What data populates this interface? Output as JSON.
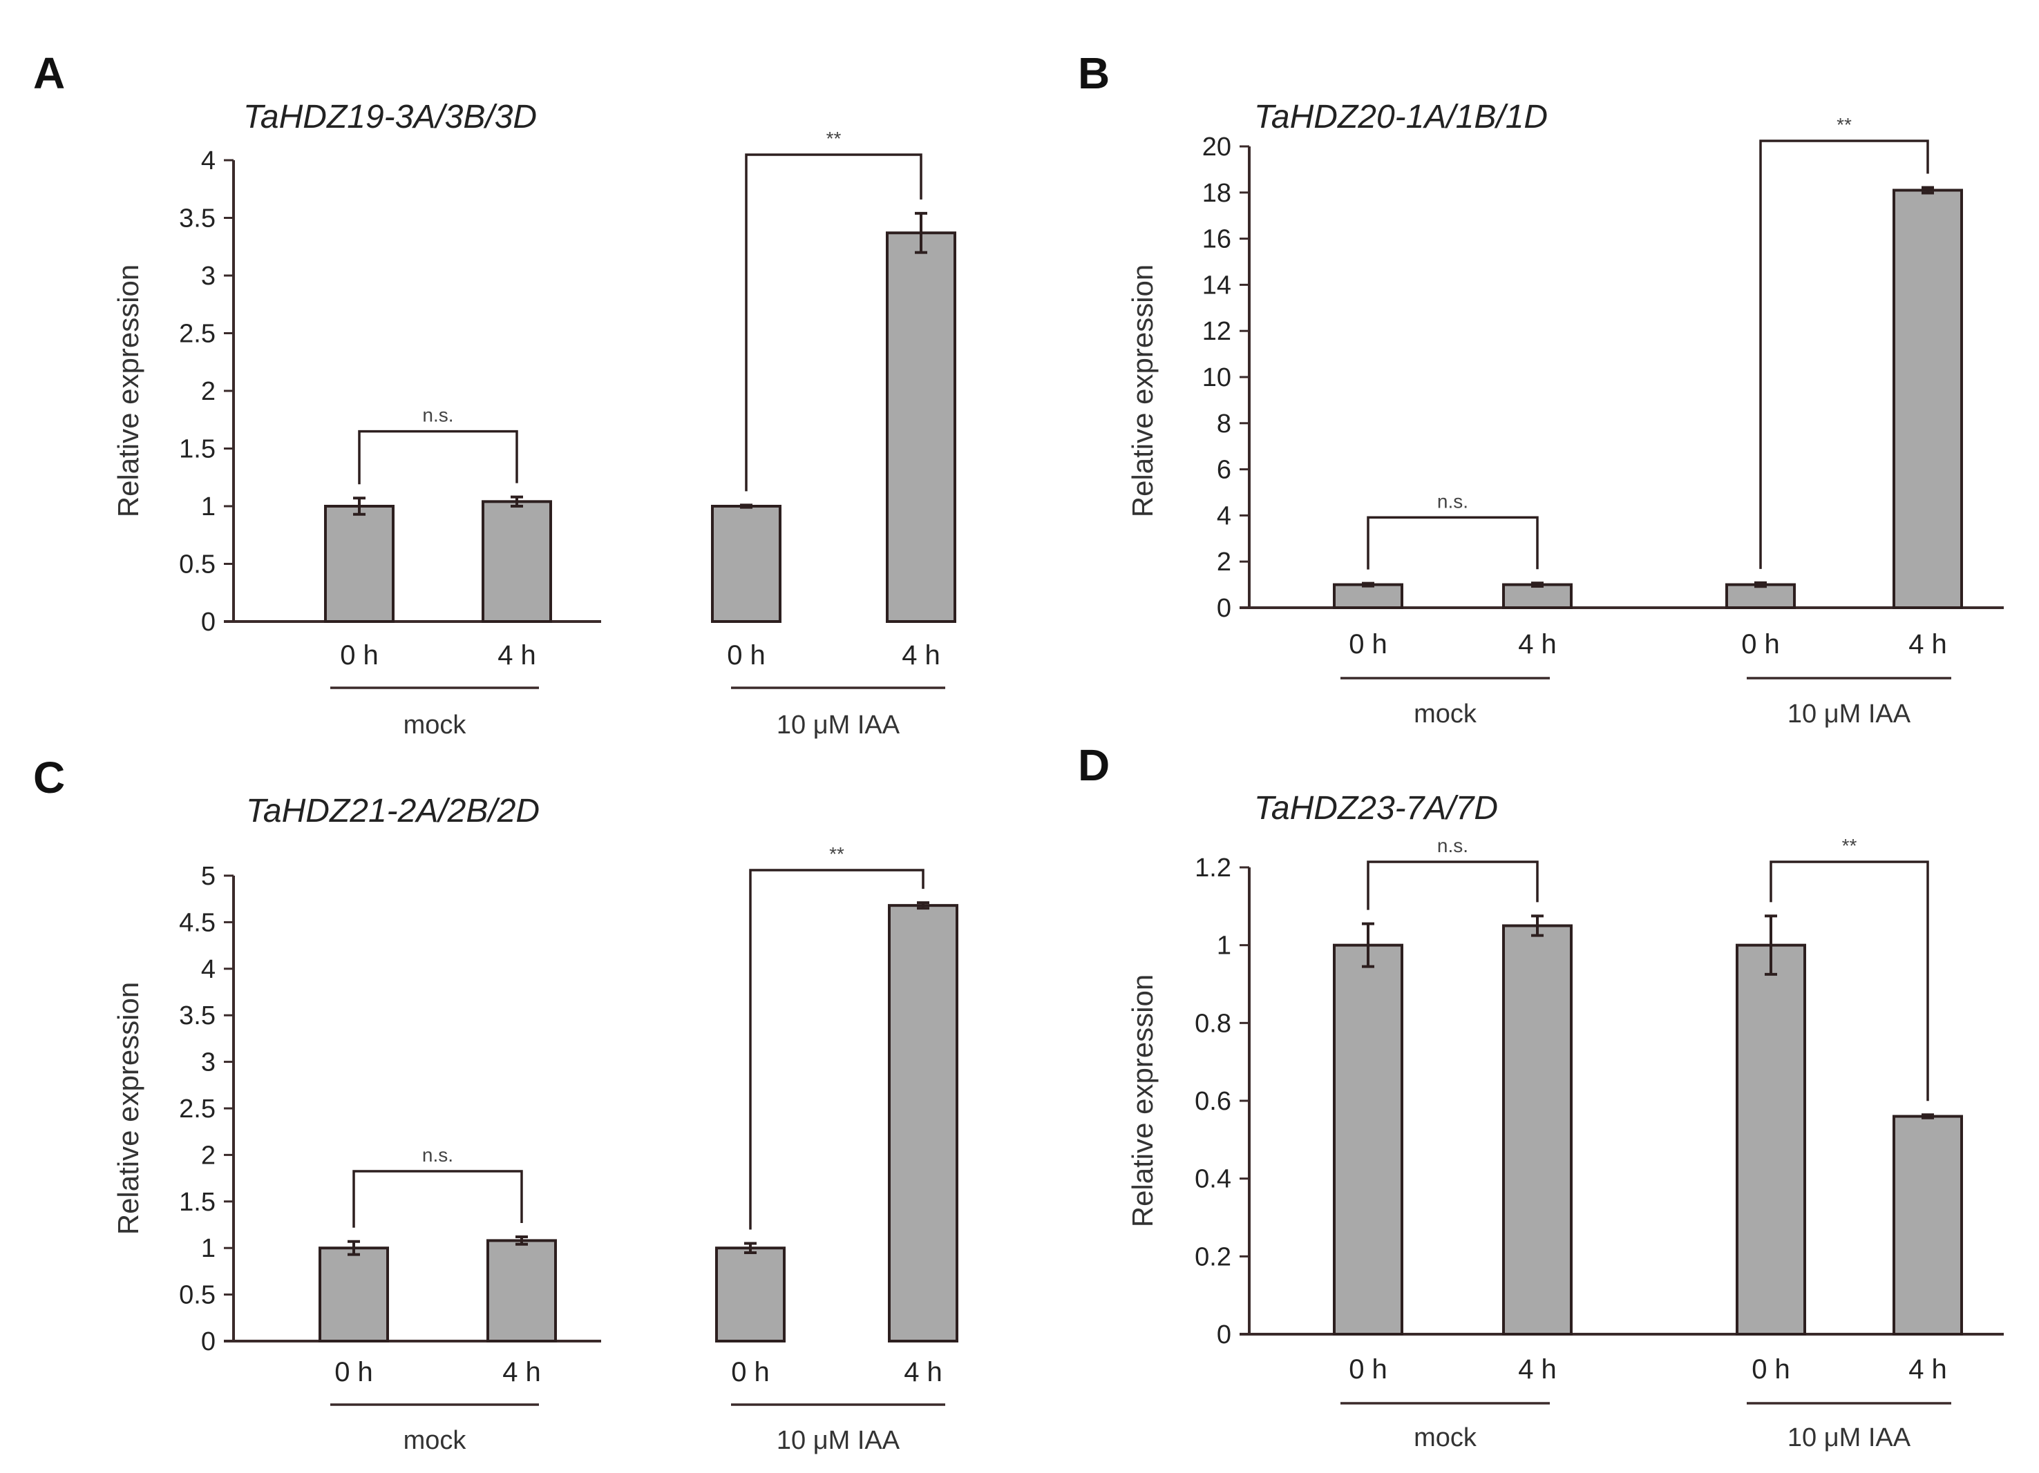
{
  "chart_data": [
    {
      "type": "bar",
      "panel": "A",
      "title": "TaHDZ19-3A/3B/3D",
      "ylabel": "Relative expression",
      "xlabel": "",
      "ylim": [
        0,
        4
      ],
      "yticks": [
        0,
        0.5,
        1,
        1.5,
        2,
        2.5,
        3,
        3.5,
        4
      ],
      "ytick_labels": [
        "0",
        "0.5",
        "1",
        "1.5",
        "2",
        "2.5",
        "3",
        "3.5",
        "4"
      ],
      "categories": [
        "0 h",
        "4 h",
        "0 h",
        "4 h"
      ],
      "groups": [
        "mock",
        "10 μM IAA"
      ],
      "values": [
        1.0,
        1.04,
        1.0,
        3.37
      ],
      "errors": [
        0.07,
        0.04,
        0.01,
        0.17
      ],
      "significance": [
        {
          "from": 0,
          "to": 1,
          "label": "n.s."
        },
        {
          "from": 2,
          "to": 3,
          "label": "**"
        }
      ]
    },
    {
      "type": "bar",
      "panel": "B",
      "title": "TaHDZ20-1A/1B/1D",
      "ylabel": "Relative expression",
      "xlabel": "",
      "ylim": [
        0,
        20
      ],
      "yticks": [
        0,
        2,
        4,
        6,
        8,
        10,
        12,
        14,
        16,
        18,
        20
      ],
      "ytick_labels": [
        "0",
        "2",
        "4",
        "6",
        "8",
        "10",
        "12",
        "14",
        "16",
        "18",
        "20"
      ],
      "categories": [
        "0 h",
        "4 h",
        "0 h",
        "4 h"
      ],
      "groups": [
        "mock",
        "10 μM IAA"
      ],
      "values": [
        1.0,
        1.0,
        1.0,
        18.1
      ],
      "errors": [
        0.06,
        0.07,
        0.08,
        0.12
      ],
      "significance": [
        {
          "from": 0,
          "to": 1,
          "label": "n.s."
        },
        {
          "from": 2,
          "to": 3,
          "label": "**"
        }
      ]
    },
    {
      "type": "bar",
      "panel": "C",
      "title": "TaHDZ21-2A/2B/2D",
      "ylabel": "Relative expression",
      "xlabel": "",
      "ylim": [
        0,
        5
      ],
      "yticks": [
        0,
        0.5,
        1,
        1.5,
        2,
        2.5,
        3,
        3.5,
        4,
        4.5,
        5
      ],
      "ytick_labels": [
        "0",
        "0.5",
        "1",
        "1.5",
        "2",
        "2.5",
        "3",
        "3.5",
        "4",
        "4.5",
        "5"
      ],
      "categories": [
        "0 h",
        "4 h",
        "0 h",
        "4 h"
      ],
      "groups": [
        "mock",
        "10 μM IAA"
      ],
      "values": [
        1.0,
        1.08,
        1.0,
        4.68
      ],
      "errors": [
        0.07,
        0.04,
        0.05,
        0.03
      ],
      "significance": [
        {
          "from": 0,
          "to": 1,
          "label": "n.s."
        },
        {
          "from": 2,
          "to": 3,
          "label": "**"
        }
      ]
    },
    {
      "type": "bar",
      "panel": "D",
      "title": "TaHDZ23-7A/7D",
      "ylabel": "Relative expression",
      "xlabel": "",
      "ylim": [
        0,
        1.2
      ],
      "yticks": [
        0,
        0.2,
        0.4,
        0.6,
        0.8,
        1,
        1.2
      ],
      "ytick_labels": [
        "0",
        "0.2",
        "0.4",
        "0.6",
        "0.8",
        "1",
        "1.2"
      ],
      "categories": [
        "0 h",
        "4 h",
        "0 h",
        "4 h"
      ],
      "groups": [
        "mock",
        "10 μM IAA"
      ],
      "values": [
        1.0,
        1.05,
        1.0,
        0.56
      ],
      "errors": [
        0.055,
        0.025,
        0.075,
        0.004
      ],
      "significance": [
        {
          "from": 0,
          "to": 1,
          "label": "n.s."
        },
        {
          "from": 2,
          "to": 3,
          "label": "**"
        }
      ]
    }
  ]
}
